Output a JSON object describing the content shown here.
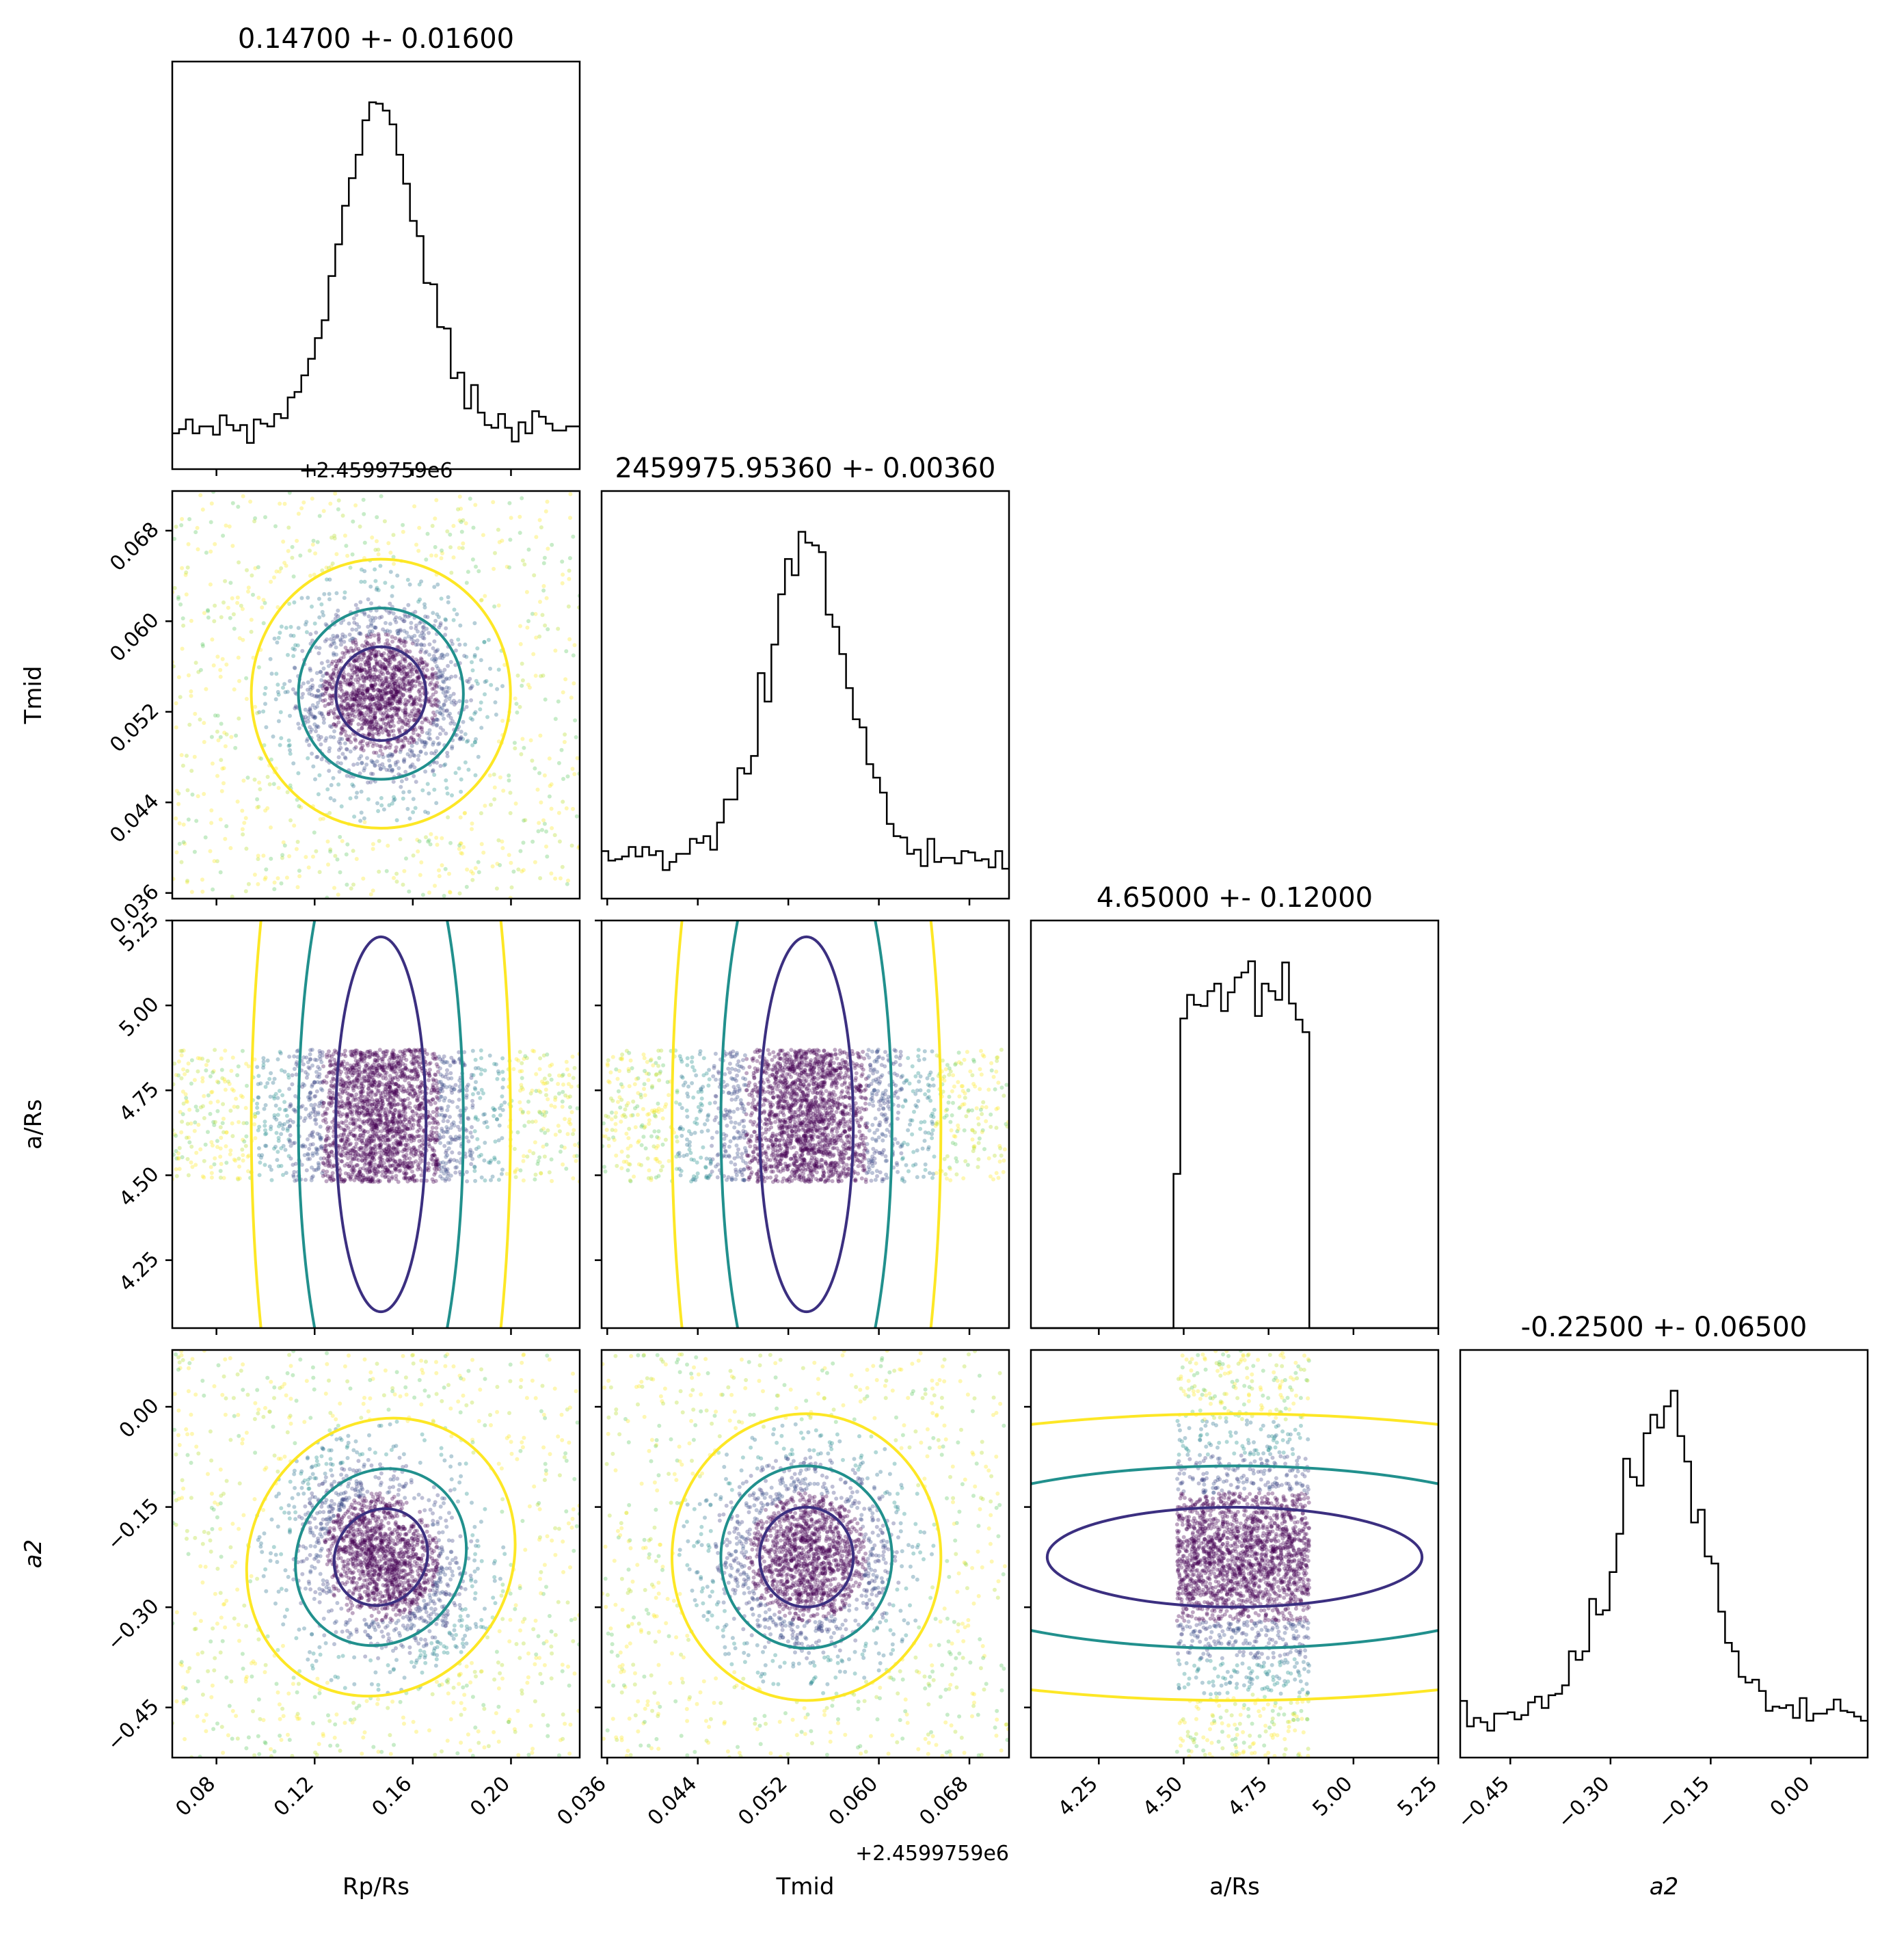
{
  "chart_data": {
    "type": "corner",
    "parameters": [
      {
        "key": "rp",
        "label_main": "R",
        "label_sub": "p",
        "label_tail": "/R",
        "label_sub2": "s"
      },
      {
        "key": "tmid",
        "label_main": "T",
        "label_sub": "mid",
        "label_tail": "",
        "label_sub2": ""
      },
      {
        "key": "ars",
        "label_main": "a/R",
        "label_sub": "s",
        "label_tail": "",
        "label_sub2": ""
      },
      {
        "key": "a2",
        "label_main": "a",
        "label_sub": "2",
        "label_tail": "",
        "label_sub2": "",
        "italic": true
      }
    ],
    "titles": [
      "0.14700 +- 0.01600",
      "2459975.95360 +- 0.00360",
      "4.65000 +- 0.12000",
      "-0.22500 +- 0.06500"
    ],
    "offset_text": "+2.4599759e6",
    "ranges": {
      "rp": [
        0.062,
        0.228
      ],
      "tmid": [
        0.0355,
        0.0715
      ],
      "ars": [
        4.05,
        5.25
      ],
      "a2": [
        -0.525,
        0.085
      ]
    },
    "ticks": {
      "rp": [
        "0.08",
        "0.12",
        "0.16",
        "0.20"
      ],
      "tmid": [
        "0.036",
        "0.044",
        "0.052",
        "0.060",
        "0.068"
      ],
      "ars": [
        "4.25",
        "4.50",
        "4.75",
        "5.00",
        "5.25"
      ],
      "a2": [
        "−0.45",
        "−0.30",
        "−0.15",
        "0.00"
      ]
    },
    "tick_values": {
      "rp": [
        0.08,
        0.12,
        0.16,
        0.2
      ],
      "tmid": [
        0.036,
        0.044,
        0.052,
        0.06,
        0.068
      ],
      "ars": [
        4.25,
        4.5,
        4.75,
        5.0,
        5.25
      ],
      "a2": [
        -0.45,
        -0.3,
        -0.15,
        0.0
      ]
    },
    "posterior": {
      "rp": {
        "median": 0.147,
        "sigma": 0.016
      },
      "tmid": {
        "median": 0.0536,
        "sigma": 0.0036
      },
      "ars": {
        "median": 4.65,
        "sigma": 0.12,
        "uniform_min": 4.48,
        "uniform_max": 4.87
      },
      "a2": {
        "median": -0.225,
        "sigma": 0.065
      }
    },
    "colors": {
      "inner_contour": "#3b2f80",
      "middle_contour": "#21908d",
      "outer_contour": "#fde725",
      "dense_points": "#440154",
      "histogram": "#000000"
    }
  }
}
